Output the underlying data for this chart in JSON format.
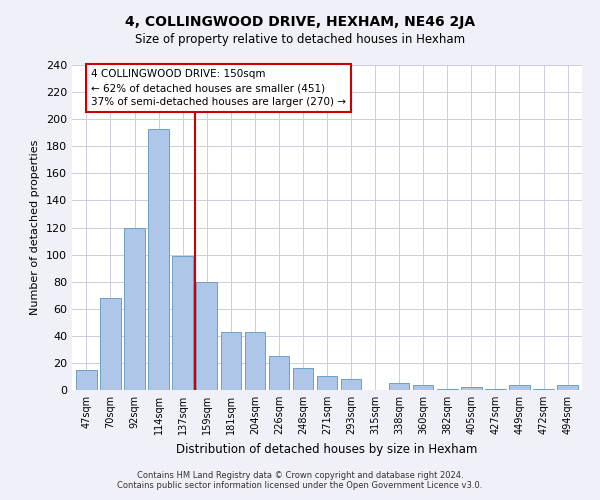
{
  "title": "4, COLLINGWOOD DRIVE, HEXHAM, NE46 2JA",
  "subtitle": "Size of property relative to detached houses in Hexham",
  "xlabel": "Distribution of detached houses by size in Hexham",
  "ylabel": "Number of detached properties",
  "bar_labels": [
    "47sqm",
    "70sqm",
    "92sqm",
    "114sqm",
    "137sqm",
    "159sqm",
    "181sqm",
    "204sqm",
    "226sqm",
    "248sqm",
    "271sqm",
    "293sqm",
    "315sqm",
    "338sqm",
    "360sqm",
    "382sqm",
    "405sqm",
    "427sqm",
    "449sqm",
    "472sqm",
    "494sqm"
  ],
  "bar_values": [
    15,
    68,
    120,
    193,
    99,
    80,
    43,
    43,
    25,
    16,
    10,
    8,
    0,
    5,
    4,
    1,
    2,
    1,
    4,
    1,
    4
  ],
  "bar_color": "#aec6e8",
  "bar_edge_color": "#6ca0c8",
  "vline_x": 4.5,
  "vline_color": "#cc0000",
  "annotation_title": "4 COLLINGWOOD DRIVE: 150sqm",
  "annotation_line1": "← 62% of detached houses are smaller (451)",
  "annotation_line2": "37% of semi-detached houses are larger (270) →",
  "annotation_box_color": "#ffffff",
  "annotation_box_edge": "#cc0000",
  "ylim": [
    0,
    240
  ],
  "yticks": [
    0,
    20,
    40,
    60,
    80,
    100,
    120,
    140,
    160,
    180,
    200,
    220,
    240
  ],
  "footer_line1": "Contains HM Land Registry data © Crown copyright and database right 2024.",
  "footer_line2": "Contains public sector information licensed under the Open Government Licence v3.0.",
  "bg_color": "#f0f0f8",
  "plot_bg_color": "#ffffff"
}
